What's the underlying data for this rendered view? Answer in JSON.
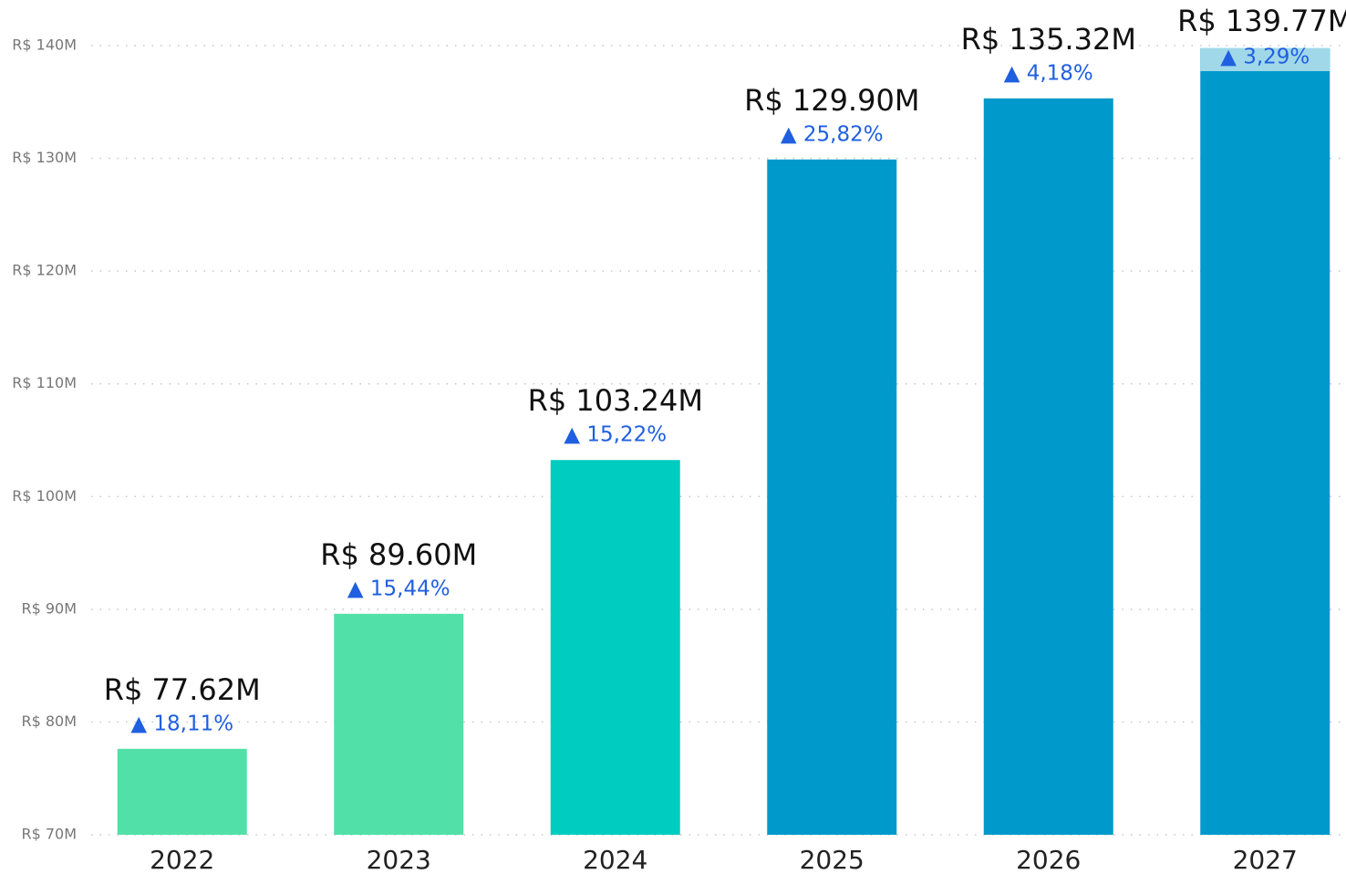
{
  "chart_data": {
    "type": "bar",
    "categories": [
      "2022",
      "2023",
      "2024",
      "2025",
      "2026",
      "2027"
    ],
    "values": [
      77.62,
      89.6,
      103.24,
      129.9,
      135.32,
      139.77
    ],
    "value_labels": [
      "R$ 77.62M",
      "R$ 89.60M",
      "R$ 103.24M",
      "R$ 129.90M",
      "R$ 135.32M",
      "R$ 139.77M"
    ],
    "annotations": [
      "▲ 18,11%",
      "▲ 15,44%",
      "▲ 15,22%",
      "▲ 25,82%",
      "▲ 4,18%",
      "▲ 3,29%"
    ],
    "colors": [
      "#50e0a8",
      "#50e0a8",
      "#00ccc0",
      "#0099cc",
      "#0099cc",
      "#0099cc"
    ],
    "ylim": [
      70,
      140
    ],
    "yticks": [
      {
        "value": 70,
        "label": "R$ 70M"
      },
      {
        "value": 80,
        "label": "R$ 80M"
      },
      {
        "value": 90,
        "label": "R$ 90M"
      },
      {
        "value": 100,
        "label": "R$ 100M"
      },
      {
        "value": 110,
        "label": "R$ 110M"
      },
      {
        "value": 120,
        "label": "R$ 120M"
      },
      {
        "value": 130,
        "label": "R$ 130M"
      },
      {
        "value": 140,
        "label": "R$ 140M"
      }
    ],
    "grid": true
  }
}
